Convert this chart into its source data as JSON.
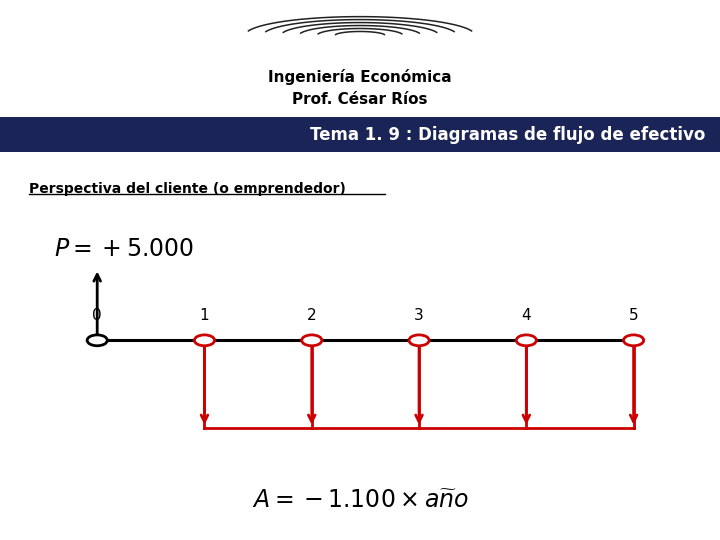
{
  "title_line1": "Ingeniería Económica",
  "title_line2": "Prof. César Ríos",
  "banner_text": "Tema 1. 9 : Diagramas de flujo de efectivo",
  "banner_color": "#1a2456",
  "banner_text_color": "#ffffff",
  "subtitle": "Perspectiva del cliente (o emprendedor)",
  "bg_color": "#ffffff",
  "timeline_color": "#000000",
  "arrow_color": "#cc0000",
  "circle_color": "#cc0000",
  "period_labels": [
    "0",
    "1",
    "2",
    "3",
    "4",
    "5"
  ],
  "period_positions": [
    0,
    1,
    2,
    3,
    4,
    5
  ]
}
